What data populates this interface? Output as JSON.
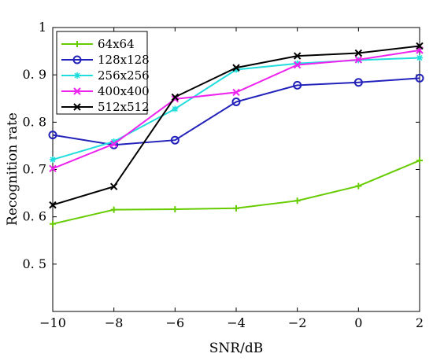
{
  "chart_data": {
    "type": "line",
    "xlabel": "SNR/dB",
    "ylabel": "Recognition rate",
    "xlim": [
      -10,
      2
    ],
    "ylim": [
      0.4,
      1.0
    ],
    "xticks": [
      -10,
      -8,
      -6,
      -4,
      -2,
      0,
      2
    ],
    "yticks": [
      0.5,
      0.6,
      0.7,
      0.8,
      0.9,
      1
    ],
    "ytick_labels": [
      "0. 5",
      "0. 6",
      "0. 7",
      "0. 8",
      "0. 9",
      "1"
    ],
    "grid": false,
    "legend_position": "top-left",
    "x": [
      -10,
      -8,
      -6,
      -4,
      -2,
      0,
      2
    ],
    "series": [
      {
        "name": "64x64",
        "color": "#66cc00",
        "marker": "plus",
        "values": [
          0.585,
          0.615,
          0.616,
          0.618,
          0.634,
          0.665,
          0.719
        ]
      },
      {
        "name": "128x128",
        "color": "#2222bb",
        "marker": "circle",
        "values": [
          0.773,
          0.752,
          0.762,
          0.843,
          0.878,
          0.884,
          0.893
        ]
      },
      {
        "name": "256x256",
        "color": "#22dddd",
        "marker": "asterisk",
        "values": [
          0.721,
          0.759,
          0.828,
          0.911,
          0.924,
          0.931,
          0.936
        ]
      },
      {
        "name": "400x400",
        "color": "#ee22ee",
        "marker": "x",
        "values": [
          0.702,
          0.754,
          0.849,
          0.863,
          0.921,
          0.932,
          0.952
        ]
      },
      {
        "name": "512x512",
        "color": "#000000",
        "marker": "x",
        "values": [
          0.625,
          0.664,
          0.853,
          0.915,
          0.94,
          0.946,
          0.961
        ]
      }
    ]
  }
}
